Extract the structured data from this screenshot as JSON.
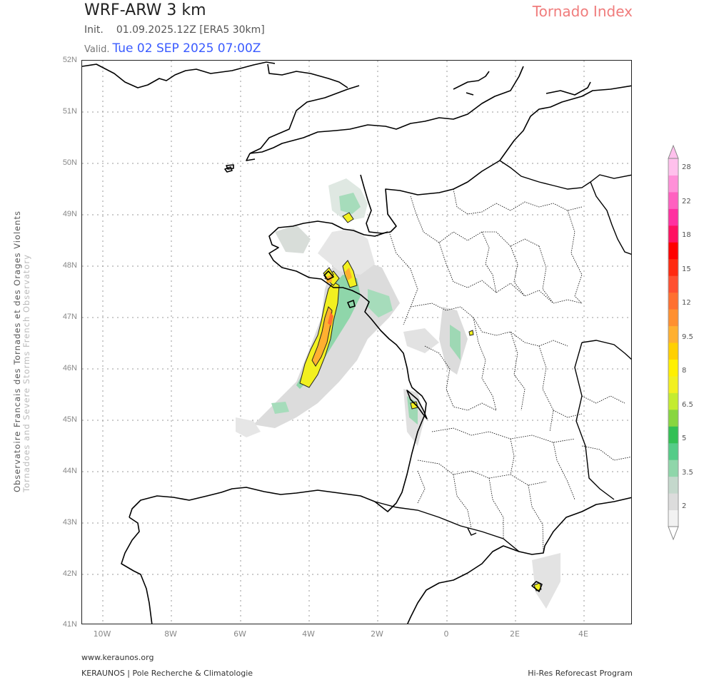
{
  "header": {
    "title": "WRF-ARW 3 km",
    "product": "Tornado Index",
    "init_label": "Init.",
    "init_value": "01.09.2025.12Z [ERA5 30km]",
    "valid_label": "Valid.",
    "valid_value": "Tue 02 SEP 2025 07:00Z"
  },
  "side_credit": {
    "line1": "Observatoire Francais des Tornades et des Orages Violents",
    "line2": "Tornadoes and Severe Storms French Observatory"
  },
  "footer": {
    "url": "www.keraunos.org",
    "left": "KERAUNOS | Pole Recherche & Climatologie",
    "right": "Hi-Res Reforecast Program"
  },
  "axes": {
    "lat_labels": [
      "52N",
      "51N",
      "50N",
      "49N",
      "48N",
      "47N",
      "46N",
      "45N",
      "44N",
      "43N",
      "42N",
      "41N"
    ],
    "lon_labels": [
      "10W",
      "8W",
      "6W",
      "4W",
      "2W",
      "0",
      "2E",
      "4E"
    ]
  },
  "colorbar": {
    "labels": [
      "28",
      "22",
      "18",
      "15",
      "12",
      "9.5",
      "8",
      "6.5",
      "5",
      "3.5",
      "2"
    ],
    "colors": [
      "#f2f2f2",
      "#dcdcdc",
      "#c4d8cc",
      "#8fd6aa",
      "#55cc88",
      "#33c055",
      "#88d640",
      "#c4ec30",
      "#f2f020",
      "#fff000",
      "#ffd000",
      "#ffb030",
      "#ff9030",
      "#ff7030",
      "#ff5030",
      "#ff2a10",
      "#ff0000",
      "#ff1060",
      "#ff30a0",
      "#ff60c0",
      "#ff90d8",
      "#ffc0ec"
    ],
    "top_color": "#ffc0ec"
  },
  "colors": {
    "product_accent": "#f07c7c",
    "valid_accent": "#3a5bff"
  }
}
